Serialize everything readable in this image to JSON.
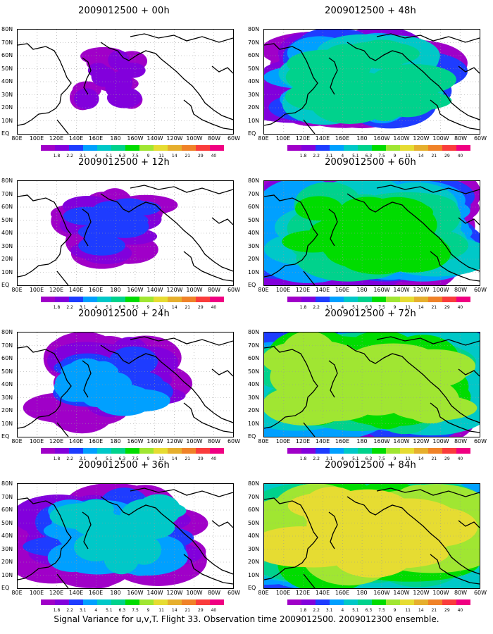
{
  "caption": "Signal Variance for u,v,T. Flight 33. Observation time 2009012500. 2009012300 ensemble.",
  "panels": [
    {
      "title": "2009012500 + 00h",
      "stage": 0
    },
    {
      "title": "2009012500 + 48h",
      "stage": 4
    },
    {
      "title": "2009012500 + 12h",
      "stage": 1
    },
    {
      "title": "2009012500 + 60h",
      "stage": 5
    },
    {
      "title": "2009012500 + 24h",
      "stage": 2
    },
    {
      "title": "2009012500 + 72h",
      "stage": 6
    },
    {
      "title": "2009012500 + 36h",
      "stage": 3
    },
    {
      "title": "2009012500 + 84h",
      "stage": 7
    }
  ],
  "lat_labels": [
    "80N",
    "70N",
    "60N",
    "50N",
    "40N",
    "30N",
    "20N",
    "10N",
    "EQ"
  ],
  "lon_labels": [
    "80E",
    "100E",
    "120E",
    "140E",
    "160E",
    "180",
    "160W",
    "140W",
    "120W",
    "100W",
    "80W",
    "60W"
  ],
  "colorbar": {
    "labels": [
      "1.8",
      "2.2",
      "3.1",
      "4",
      "5.1",
      "6.3",
      "7.5",
      "9",
      "11",
      "14",
      "21",
      "29",
      "40"
    ],
    "colors": [
      "#a000c8",
      "#8200dc",
      "#1e3cff",
      "#00a0ff",
      "#00c8c8",
      "#00d28c",
      "#00dc00",
      "#a0e632",
      "#e6dc32",
      "#e6af2d",
      "#f08228",
      "#fa3c3c",
      "#f00082"
    ]
  }
}
